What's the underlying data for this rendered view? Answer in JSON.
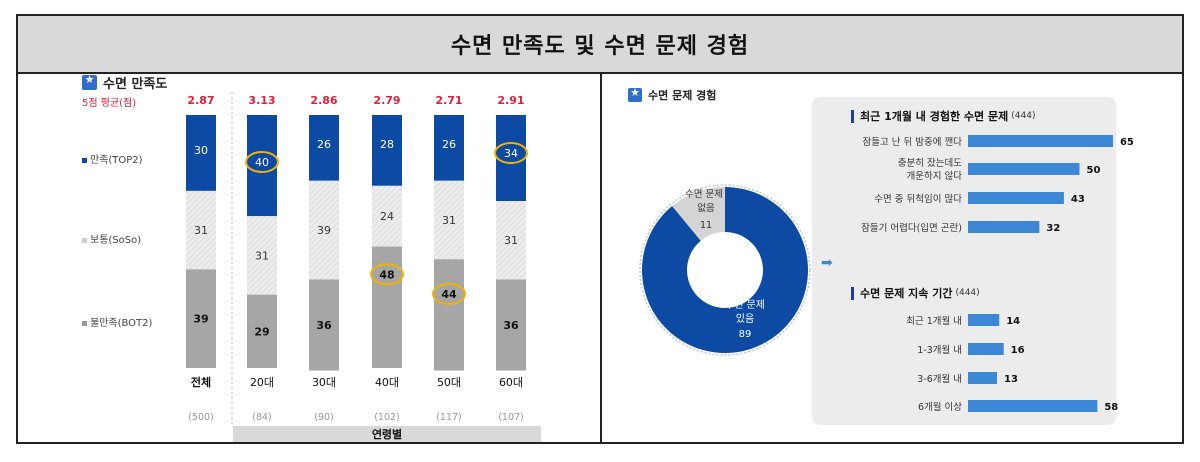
{
  "page_title": "수면 만족도 및 수면 문제 경험",
  "left": {
    "title": "수면 만족도",
    "avg_label": "5점 평균(점)",
    "legend": [
      "만족(TOP2)",
      "보통(SoSo)",
      "불만족(BOT2)"
    ],
    "group_label": "연령별"
  },
  "right": {
    "title": "수면 문제 경험",
    "donut_labels": {
      "none_line1": "수면 문제",
      "none_line2": "없음",
      "none_value": "11",
      "yes_line1": "수면 문제",
      "yes_line2": "있음",
      "yes_value": "89"
    },
    "sub1_title": "최근 1개월 내 경험한 수면 문제",
    "sub1_n": "(444)",
    "sub2_title": "수면 문제 지속 기간",
    "sub2_n": "(444)",
    "arrow": "➡"
  },
  "chart_data": [
    {
      "type": "bar",
      "stacked": true,
      "title": "수면 만족도",
      "categories": [
        "전체",
        "20대",
        "30대",
        "40대",
        "50대",
        "60대"
      ],
      "sample_sizes": [
        "(500)",
        "(84)",
        "(90)",
        "(102)",
        "(117)",
        "(107)"
      ],
      "averages": [
        "2.87",
        "3.13",
        "2.86",
        "2.79",
        "2.71",
        "2.91"
      ],
      "series": [
        {
          "name": "만족(TOP2)",
          "values": [
            30,
            40,
            26,
            28,
            26,
            34
          ],
          "color": "#0d4aa3"
        },
        {
          "name": "보통(SoSo)",
          "values": [
            31,
            31,
            39,
            24,
            31,
            31
          ],
          "color": "#e6e6e6"
        },
        {
          "name": "불만족(BOT2)",
          "values": [
            39,
            29,
            36,
            48,
            44,
            36
          ],
          "color": "#a6a6a6"
        }
      ],
      "highlighted": [
        [
          1,
          0
        ],
        [
          5,
          0
        ],
        [
          3,
          2
        ],
        [
          4,
          2
        ]
      ],
      "highlight_color": "#f0b400",
      "ylim": [
        0,
        100
      ]
    },
    {
      "type": "pie",
      "donut": true,
      "title": "수면 문제 경험",
      "labels": [
        "수면 문제 있음",
        "수면 문제 없음"
      ],
      "values": [
        89,
        11
      ],
      "colors": [
        "#0d4aa3",
        "#d4d4d4"
      ]
    },
    {
      "type": "bar",
      "orientation": "horizontal",
      "title": "최근 1개월 내 경험한 수면 문제",
      "categories": [
        "잠들고 난 뒤 밤중에 깬다",
        "충분히 잤는데도|개운하지 않다",
        "수면 중 뒤척임이 많다",
        "잠들기 어렵다(입면 곤란)"
      ],
      "values": [
        65,
        50,
        43,
        32
      ],
      "color": "#3c87d6",
      "xlim": [
        0,
        100
      ]
    },
    {
      "type": "bar",
      "orientation": "horizontal",
      "title": "수면 문제 지속 기간",
      "categories": [
        "최근 1개월 내",
        "1-3개월 내",
        "3-6개월 내",
        "6개월 이상"
      ],
      "values": [
        14,
        16,
        13,
        58
      ],
      "color": "#3c87d6",
      "xlim": [
        0,
        100
      ]
    }
  ]
}
